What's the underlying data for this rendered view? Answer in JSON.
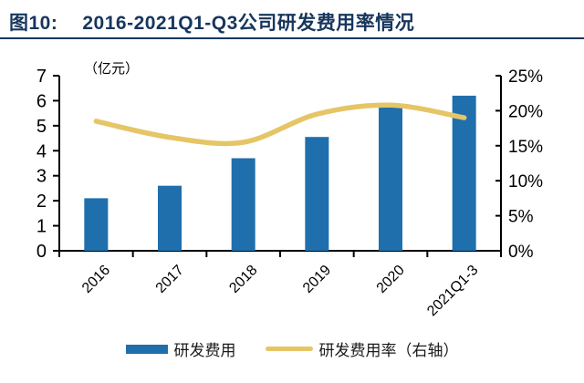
{
  "header": {
    "figure_label": "图10:",
    "title": "2016-2021Q1-Q3公司研发费用率情况"
  },
  "colors": {
    "navy": "#17365D",
    "bar_blue": "#1F6FAD",
    "line_yellow": "#E5C566",
    "axis_black": "#000000"
  },
  "chart_data": {
    "type": "bar",
    "combo": "bar+line",
    "title": "2016-2021Q1-Q3公司研发费用率情况",
    "categories": [
      "2016",
      "2017",
      "2018",
      "2019",
      "2020",
      "2021Q1-3"
    ],
    "series": [
      {
        "name": "研发费用",
        "type": "bar",
        "axis": "left",
        "color": "#1F6FAD",
        "values": [
          2.1,
          2.6,
          3.7,
          4.55,
          5.75,
          6.2
        ]
      },
      {
        "name": "研发费用率（右轴）",
        "type": "line",
        "axis": "right",
        "color": "#E5C566",
        "values": [
          18.5,
          16.2,
          15.5,
          19.5,
          20.8,
          19.0
        ]
      }
    ],
    "left_axis": {
      "label": "（亿元）",
      "min": 0,
      "max": 7,
      "step": 1
    },
    "right_axis": {
      "min": 0,
      "max": 25,
      "step": 5,
      "suffix": "%"
    },
    "grid": false,
    "legend_position": "bottom"
  }
}
